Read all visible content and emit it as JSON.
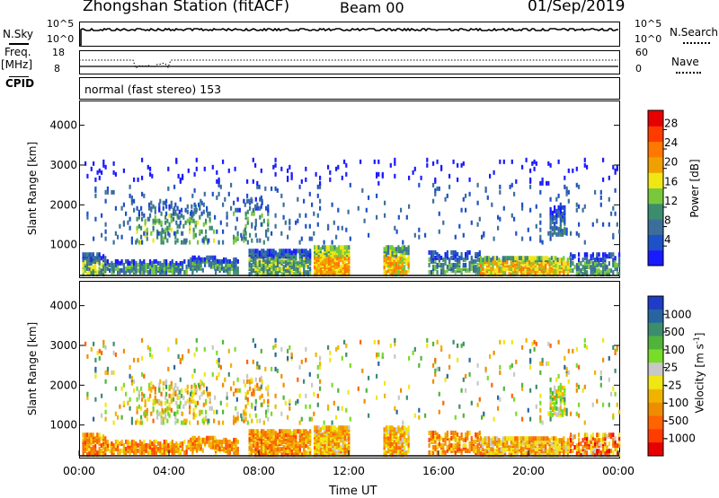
{
  "header": {
    "station": "Zhongshan Station (fitACF)",
    "beam": "Beam 00",
    "date": "01/Sep/2019"
  },
  "panels": {
    "nsky": {
      "label": "N.Sky",
      "tick_top": "10^5",
      "tick_bottom": "10^0",
      "right_label": "N.Search",
      "right_tick_top": "10^5",
      "right_tick_bottom": "10^0"
    },
    "freq": {
      "label_line1": "Freq.",
      "label_line2": "[MHz]",
      "tick_top": "18",
      "tick_bottom": "8",
      "right_label": "Nave",
      "right_tick_top": "60",
      "right_tick_bottom": "0"
    },
    "cpid": {
      "label": "CPID",
      "value": "normal (fast stereo) 153"
    }
  },
  "chart_data": [
    {
      "type": "heatmap",
      "parameter": "Power",
      "ylabel": "Slant Range [km]",
      "xlabel": "",
      "x_ticks": [
        "00:00",
        "04:00",
        "08:00",
        "12:00",
        "16:00",
        "20:00",
        "00:00"
      ],
      "y_ticks": [
        1000,
        2000,
        3000,
        4000
      ],
      "ylim": [
        180,
        4600
      ],
      "xlim_hours": [
        0,
        24
      ],
      "colorbar": {
        "label": "Power [dB]",
        "ticks": [
          4,
          8,
          12,
          16,
          20,
          24,
          28
        ],
        "colors": [
          "#1a1aff",
          "#1e50c8",
          "#3c6e9a",
          "#3c8c6e",
          "#78c83c",
          "#f0e614",
          "#f0a000",
          "#ff7800",
          "#ff3c00",
          "#e60000"
        ]
      }
    },
    {
      "type": "heatmap",
      "parameter": "Velocity",
      "ylabel": "Slant Range [km]",
      "xlabel": "Time UT",
      "x_ticks": [
        "00:00",
        "04:00",
        "08:00",
        "12:00",
        "16:00",
        "20:00",
        "00:00"
      ],
      "y_ticks": [
        1000,
        2000,
        3000,
        4000
      ],
      "ylim": [
        180,
        4600
      ],
      "xlim_hours": [
        0,
        24
      ],
      "colorbar": {
        "label": "Velocity [m s^-1]",
        "ticks": [
          1000,
          500,
          100,
          25,
          -25,
          -100,
          -500,
          -1000
        ],
        "colors": [
          "#1e3cc8",
          "#2864a0",
          "#3c8c6e",
          "#50b43c",
          "#78dc28",
          "#c8c8c8",
          "#f0e614",
          "#f0b400",
          "#f08c00",
          "#ff6400",
          "#ff3c00",
          "#e60000"
        ]
      }
    }
  ]
}
